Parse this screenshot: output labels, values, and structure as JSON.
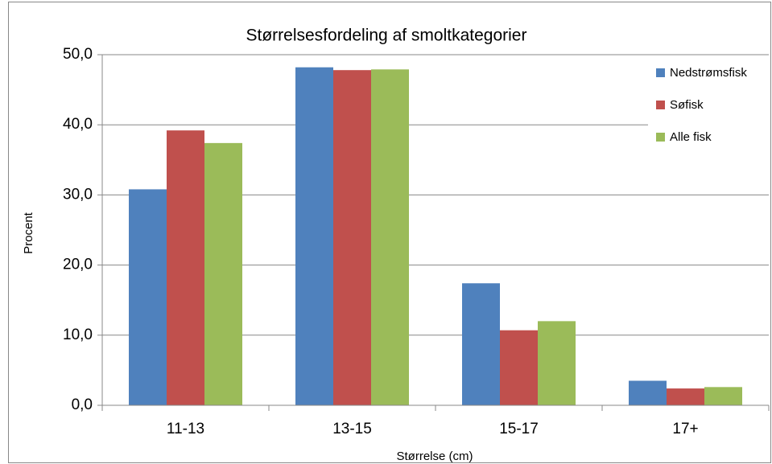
{
  "chart_data": {
    "type": "bar",
    "title": "Størrelsesfordeling af smoltkategorier",
    "x_label": "Størrelse (cm)",
    "y_label": "Procent",
    "categories": [
      "11-13",
      "13-15",
      "15-17",
      "17+"
    ],
    "series": [
      {
        "name": "Nedstrømsfisk",
        "color": "#4f81bd",
        "values": [
          30.8,
          48.2,
          17.4,
          3.5
        ]
      },
      {
        "name": "Søfisk",
        "color": "#c0504d",
        "values": [
          39.2,
          47.8,
          10.7,
          2.4
        ]
      },
      {
        "name": "Alle fisk",
        "color": "#9bbb59",
        "values": [
          37.4,
          47.9,
          12.0,
          2.6
        ]
      }
    ],
    "ylim": [
      0,
      50
    ],
    "yticks": [
      {
        "value": 0,
        "label": "0,0"
      },
      {
        "value": 10,
        "label": "10,0"
      },
      {
        "value": 20,
        "label": "20,0"
      },
      {
        "value": 30,
        "label": "30,0"
      },
      {
        "value": 40,
        "label": "40,0"
      },
      {
        "value": 50,
        "label": "50,0"
      }
    ],
    "grid": true,
    "legend": "right"
  }
}
